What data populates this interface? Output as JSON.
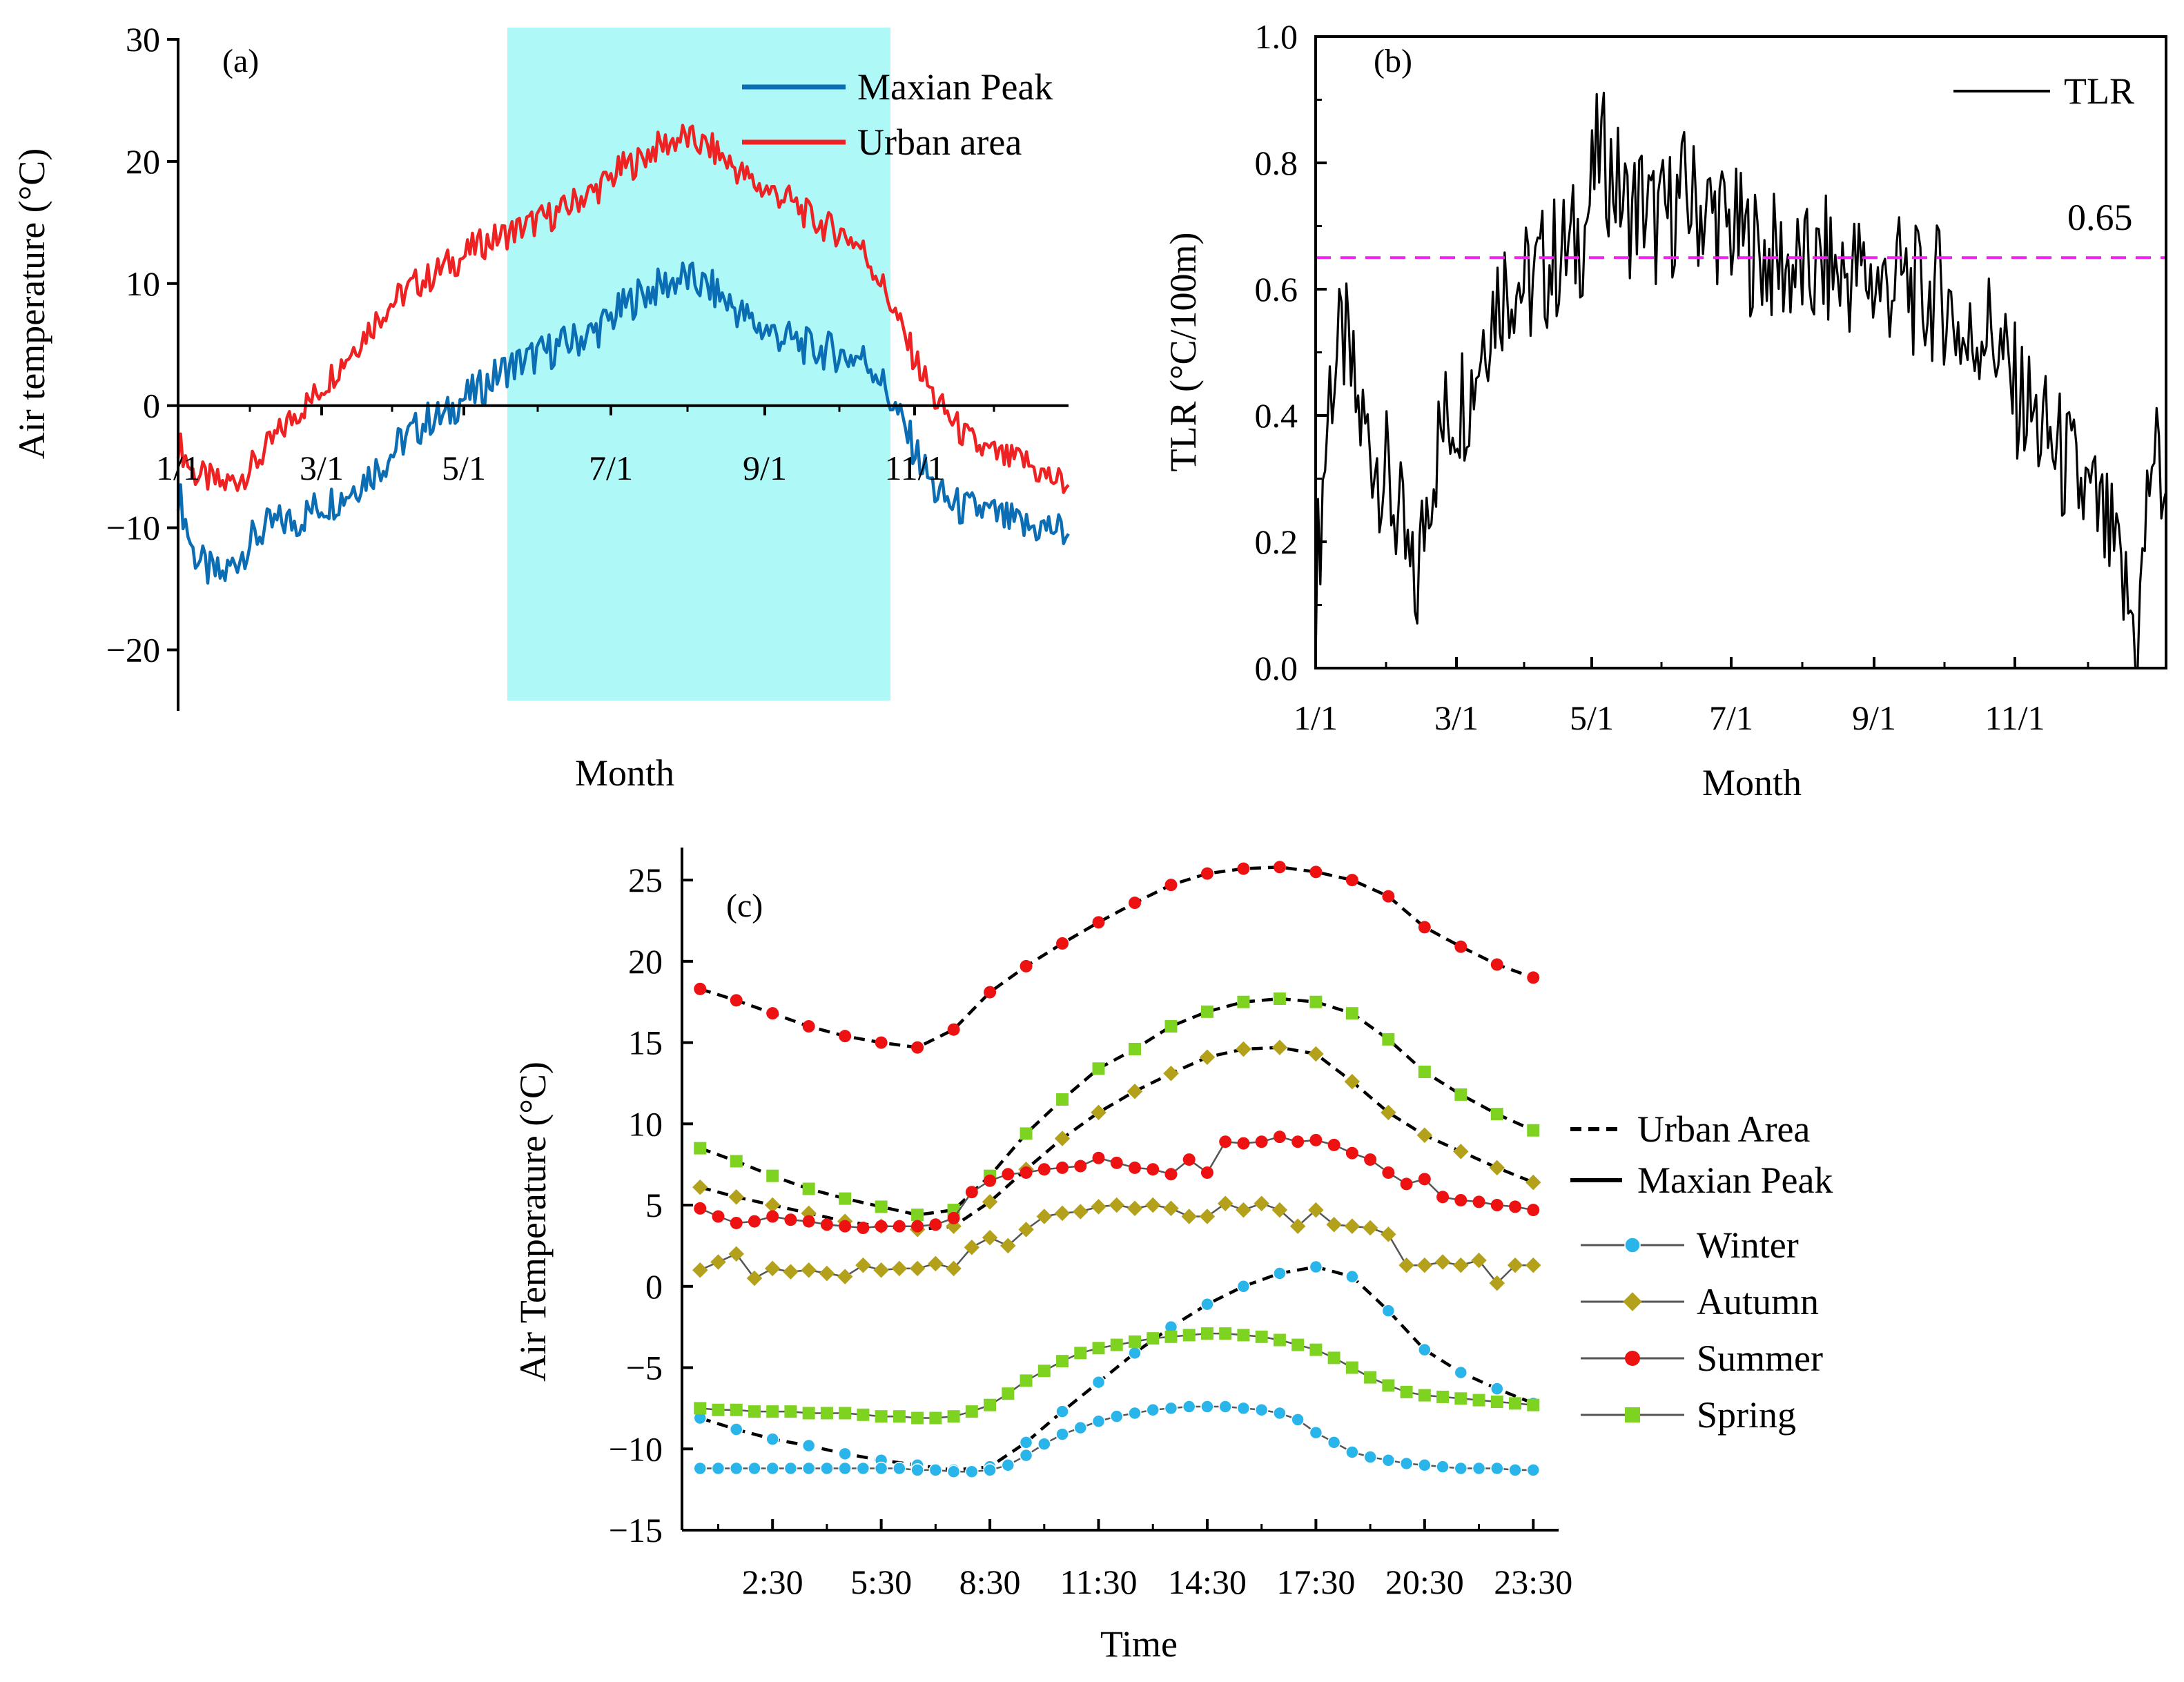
{
  "chart_data": [
    {
      "panel": "(a)",
      "type": "line",
      "xlabel": "Month",
      "ylabel": "Air temperature (°C)",
      "ylim": [
        -25,
        30
      ],
      "yticks": [
        "30",
        "20",
        "10",
        "0",
        "−10",
        "−20"
      ],
      "xticks": [
        "1/1",
        "3/1",
        "5/1",
        "7/1",
        "9/1",
        "11/1"
      ],
      "legend_position": "top-right",
      "highlight_color": "#aff8f8",
      "series": [
        {
          "name": "Maxian Peak",
          "color": "#0b6db3",
          "values": [
            -7,
            -12,
            -13.5,
            -14,
            -12.5,
            -11,
            -10,
            -9.5,
            -9.5,
            -8.5,
            -8,
            -7.5,
            -6.5,
            -5.5,
            -4.5,
            -3,
            -2,
            -1,
            -1,
            0.5,
            1,
            2,
            3,
            3.5,
            4,
            4.5,
            5,
            5.5,
            6,
            7,
            8,
            9,
            9.5,
            10,
            10.5,
            10,
            9.5,
            8.5,
            7.5,
            6.5,
            6,
            5.5,
            5,
            4.5,
            4.5,
            4,
            4,
            3,
            0.5,
            -2,
            -4.5,
            -7,
            -8,
            -8.5,
            -8.5,
            -9,
            -9.5,
            -10,
            -10,
            -10,
            -10.5
          ]
        },
        {
          "name": "Urban area",
          "color": "#ee2222",
          "values": [
            -3,
            -5.5,
            -6,
            -6.5,
            -6,
            -5,
            -3.5,
            -2,
            -0.5,
            0.5,
            2,
            3.5,
            5,
            6.5,
            8,
            9,
            10,
            10.5,
            11.5,
            12,
            13,
            13.5,
            14,
            14.5,
            15,
            15.5,
            16,
            17,
            17.5,
            18.5,
            19.5,
            20,
            21,
            21.5,
            22,
            21.5,
            21,
            20,
            19,
            18,
            17.5,
            17,
            16,
            15,
            14.5,
            14,
            13,
            11,
            8.5,
            5.5,
            3,
            0.5,
            -1,
            -2.5,
            -3.5,
            -4,
            -4.5,
            -4.5,
            -5.5,
            -6,
            -6.5
          ]
        }
      ]
    },
    {
      "panel": "(b)",
      "type": "line",
      "xlabel": "Month",
      "ylabel": "TLR (°C/100m)",
      "ylim": [
        0,
        1.0
      ],
      "yticks": [
        "0.0",
        "0.2",
        "0.4",
        "0.6",
        "0.8",
        "1.0"
      ],
      "xticks": [
        "1/1",
        "3/1",
        "5/1",
        "7/1",
        "9/1",
        "11/1"
      ],
      "legend_position": "top-right",
      "reference_line": {
        "value": 0.65,
        "label": "0.65",
        "color": "#ee22ee"
      },
      "series": [
        {
          "name": "TLR",
          "color": "#000000",
          "values": [
            0.12,
            0.45,
            0.52,
            0.4,
            0.35,
            0.3,
            0.22,
            0.1,
            0.3,
            0.38,
            0.42,
            0.45,
            0.55,
            0.6,
            0.62,
            0.6,
            0.63,
            0.65,
            0.66,
            0.7,
            0.82,
            0.78,
            0.72,
            0.74,
            0.7,
            0.72,
            0.75,
            0.73,
            0.72,
            0.7,
            0.68,
            0.66,
            0.65,
            0.64,
            0.63,
            0.62,
            0.64,
            0.62,
            0.63,
            0.62,
            0.6,
            0.62,
            0.6,
            0.58,
            0.6,
            0.56,
            0.5,
            0.55,
            0.52,
            0.45,
            0.42,
            0.38,
            0.35,
            0.32,
            0.28,
            0.25,
            0.2,
            0.12,
            0.05,
            0.35,
            0.28
          ]
        }
      ]
    },
    {
      "panel": "(c)",
      "type": "line",
      "xlabel": "Time",
      "ylabel": "Air Temperature (°C)",
      "ylim": [
        -15,
        27
      ],
      "yticks": [
        "25",
        "20",
        "15",
        "10",
        "5",
        "0",
        "−5",
        "−10",
        "−15"
      ],
      "xticks": [
        "2:30",
        "5:30",
        "8:30",
        "11:30",
        "14:30",
        "17:30",
        "20:30",
        "23:30"
      ],
      "xtick_hours": [
        2.5,
        5.5,
        8.5,
        11.5,
        14.5,
        17.5,
        20.5,
        23.5
      ],
      "legend_position": "right",
      "line_styles": [
        {
          "name": "Urban Area",
          "style": "dashed"
        },
        {
          "name": "Maxian Peak",
          "style": "solid"
        }
      ],
      "seasons": [
        {
          "name": "Winter",
          "color": "#29b5ea",
          "marker": "circle"
        },
        {
          "name": "Autumn",
          "color": "#b3a11b",
          "marker": "diamond"
        },
        {
          "name": "Summer",
          "color": "#ee1111",
          "marker": "circle"
        },
        {
          "name": "Spring",
          "color": "#7ed321",
          "marker": "square"
        }
      ],
      "series": [
        {
          "name": "Summer",
          "site": "Urban Area",
          "x": [
            0.5,
            1.5,
            2.5,
            3.5,
            4.5,
            5.5,
            6.5,
            7.5,
            8.5,
            9.5,
            10.5,
            11.5,
            12.5,
            13.5,
            14.5,
            15.5,
            16.5,
            17.5,
            18.5,
            19.5,
            20.5,
            21.5,
            22.5,
            23.5
          ],
          "values": [
            18.3,
            17.6,
            16.8,
            16.0,
            15.4,
            15.0,
            14.7,
            15.8,
            18.1,
            19.7,
            21.1,
            22.4,
            23.6,
            24.7,
            25.4,
            25.7,
            25.8,
            25.5,
            25.0,
            24.0,
            22.1,
            20.9,
            19.8,
            19.0
          ]
        },
        {
          "name": "Spring",
          "site": "Urban Area",
          "x": [
            0.5,
            1.5,
            2.5,
            3.5,
            4.5,
            5.5,
            6.5,
            7.5,
            8.5,
            9.5,
            10.5,
            11.5,
            12.5,
            13.5,
            14.5,
            15.5,
            16.5,
            17.5,
            18.5,
            19.5,
            20.5,
            21.5,
            22.5,
            23.5
          ],
          "values": [
            8.5,
            7.7,
            6.8,
            6.0,
            5.4,
            4.9,
            4.4,
            4.7,
            6.8,
            9.4,
            11.5,
            13.4,
            14.6,
            16.0,
            16.9,
            17.5,
            17.7,
            17.5,
            16.8,
            15.2,
            13.2,
            11.8,
            10.6,
            9.6
          ]
        },
        {
          "name": "Autumn",
          "site": "Urban Area",
          "x": [
            0.5,
            1.5,
            2.5,
            3.5,
            4.5,
            5.5,
            6.5,
            7.5,
            8.5,
            9.5,
            10.5,
            11.5,
            12.5,
            13.5,
            14.5,
            15.5,
            16.5,
            17.5,
            18.5,
            19.5,
            20.5,
            21.5,
            22.5,
            23.5
          ],
          "values": [
            6.1,
            5.5,
            5.0,
            4.5,
            4.0,
            3.7,
            3.5,
            3.7,
            5.2,
            7.2,
            9.1,
            10.7,
            12.0,
            13.1,
            14.1,
            14.6,
            14.7,
            14.3,
            12.6,
            10.7,
            9.3,
            8.3,
            7.3,
            6.4
          ]
        },
        {
          "name": "Winter",
          "site": "Urban Area",
          "x": [
            0.5,
            1.5,
            2.5,
            3.5,
            4.5,
            5.5,
            6.5,
            7.5,
            8.5,
            9.5,
            10.5,
            11.5,
            12.5,
            13.5,
            14.5,
            15.5,
            16.5,
            17.5,
            18.5,
            19.5,
            20.5,
            21.5,
            22.5,
            23.5
          ],
          "values": [
            -8.1,
            -8.8,
            -9.4,
            -9.8,
            -10.3,
            -10.7,
            -11.0,
            -11.3,
            -11.1,
            -9.6,
            -7.7,
            -5.9,
            -4.1,
            -2.5,
            -1.1,
            0.0,
            0.8,
            1.2,
            0.6,
            -1.5,
            -3.9,
            -5.3,
            -6.3,
            -7.2
          ]
        },
        {
          "name": "Summer",
          "site": "Maxian Peak",
          "x": [
            0.5,
            1.0,
            1.5,
            2.0,
            2.5,
            3.0,
            3.5,
            4.0,
            4.5,
            5.0,
            5.5,
            6.0,
            6.5,
            7.0,
            7.5,
            8.0,
            8.5,
            9.0,
            9.5,
            10.0,
            10.5,
            11.0,
            11.5,
            12.0,
            12.5,
            13.0,
            13.5,
            14.0,
            14.5,
            15.0,
            15.5,
            16.0,
            16.5,
            17.0,
            17.5,
            18.0,
            18.5,
            19.0,
            19.5,
            20.0,
            20.5,
            21.0,
            21.5,
            22.0,
            22.5,
            23.0,
            23.5
          ],
          "values": [
            4.8,
            4.3,
            3.9,
            4.0,
            4.3,
            4.1,
            4.0,
            3.8,
            3.7,
            3.6,
            3.7,
            3.7,
            3.7,
            3.8,
            4.2,
            5.8,
            6.5,
            6.9,
            7.0,
            7.2,
            7.3,
            7.4,
            7.9,
            7.6,
            7.3,
            7.2,
            6.9,
            7.8,
            7.0,
            8.9,
            8.8,
            8.9,
            9.2,
            8.9,
            9.0,
            8.7,
            8.2,
            7.8,
            7.0,
            6.3,
            6.6,
            5.5,
            5.3,
            5.2,
            5.0,
            4.9,
            4.7
          ]
        },
        {
          "name": "Autumn",
          "site": "Maxian Peak",
          "x": [
            0.5,
            1.0,
            1.5,
            2.0,
            2.5,
            3.0,
            3.5,
            4.0,
            4.5,
            5.0,
            5.5,
            6.0,
            6.5,
            7.0,
            7.5,
            8.0,
            8.5,
            9.0,
            9.5,
            10.0,
            10.5,
            11.0,
            11.5,
            12.0,
            12.5,
            13.0,
            13.5,
            14.0,
            14.5,
            15.0,
            15.5,
            16.0,
            16.5,
            17.0,
            17.5,
            18.0,
            18.5,
            19.0,
            19.5,
            20.0,
            20.5,
            21.0,
            21.5,
            22.0,
            22.5,
            23.0,
            23.5
          ],
          "values": [
            1.0,
            1.5,
            2.0,
            0.5,
            1.1,
            0.9,
            1.0,
            0.8,
            0.6,
            1.3,
            1.0,
            1.1,
            1.1,
            1.4,
            1.1,
            2.4,
            3.0,
            2.5,
            3.5,
            4.3,
            4.5,
            4.6,
            4.9,
            5.0,
            4.8,
            5.0,
            4.8,
            4.3,
            4.3,
            5.1,
            4.7,
            5.1,
            4.7,
            3.7,
            4.7,
            3.8,
            3.7,
            3.6,
            3.2,
            1.3,
            1.3,
            1.5,
            1.3,
            1.6,
            0.2,
            1.3,
            1.3
          ]
        },
        {
          "name": "Spring",
          "site": "Maxian Peak",
          "x": [
            0.5,
            1.0,
            1.5,
            2.0,
            2.5,
            3.0,
            3.5,
            4.0,
            4.5,
            5.0,
            5.5,
            6.0,
            6.5,
            7.0,
            7.5,
            8.0,
            8.5,
            9.0,
            9.5,
            10.0,
            10.5,
            11.0,
            11.5,
            12.0,
            12.5,
            13.0,
            13.5,
            14.0,
            14.5,
            15.0,
            15.5,
            16.0,
            16.5,
            17.0,
            17.5,
            18.0,
            18.5,
            19.0,
            19.5,
            20.0,
            20.5,
            21.0,
            21.5,
            22.0,
            22.5,
            23.0,
            23.5
          ],
          "values": [
            -7.5,
            -7.6,
            -7.6,
            -7.7,
            -7.7,
            -7.7,
            -7.8,
            -7.8,
            -7.8,
            -7.9,
            -8.0,
            -8.0,
            -8.1,
            -8.1,
            -8.0,
            -7.7,
            -7.3,
            -6.6,
            -5.8,
            -5.2,
            -4.6,
            -4.1,
            -3.8,
            -3.6,
            -3.4,
            -3.2,
            -3.1,
            -3.0,
            -2.9,
            -2.9,
            -3.0,
            -3.1,
            -3.3,
            -3.6,
            -3.9,
            -4.4,
            -5.0,
            -5.6,
            -6.1,
            -6.5,
            -6.7,
            -6.8,
            -6.9,
            -7.0,
            -7.1,
            -7.2,
            -7.3
          ]
        },
        {
          "name": "Winter",
          "site": "Maxian Peak",
          "x": [
            0.5,
            1.0,
            1.5,
            2.0,
            2.5,
            3.0,
            3.5,
            4.0,
            4.5,
            5.0,
            5.5,
            6.0,
            6.5,
            7.0,
            7.5,
            8.0,
            8.5,
            9.0,
            9.5,
            10.0,
            10.5,
            11.0,
            11.5,
            12.0,
            12.5,
            13.0,
            13.5,
            14.0,
            14.5,
            15.0,
            15.5,
            16.0,
            16.5,
            17.0,
            17.5,
            18.0,
            18.5,
            19.0,
            19.5,
            20.0,
            20.5,
            21.0,
            21.5,
            22.0,
            22.5,
            23.0,
            23.5
          ],
          "values": [
            -11.2,
            -11.2,
            -11.2,
            -11.2,
            -11.2,
            -11.2,
            -11.2,
            -11.2,
            -11.2,
            -11.2,
            -11.2,
            -11.2,
            -11.3,
            -11.3,
            -11.4,
            -11.4,
            -11.3,
            -11.0,
            -10.4,
            -9.7,
            -9.1,
            -8.7,
            -8.3,
            -8.0,
            -7.8,
            -7.6,
            -7.5,
            -7.4,
            -7.4,
            -7.4,
            -7.5,
            -7.6,
            -7.8,
            -8.2,
            -9.0,
            -9.6,
            -10.2,
            -10.5,
            -10.7,
            -10.9,
            -11.0,
            -11.1,
            -11.2,
            -11.2,
            -11.2,
            -11.3,
            -11.3
          ]
        }
      ]
    }
  ]
}
